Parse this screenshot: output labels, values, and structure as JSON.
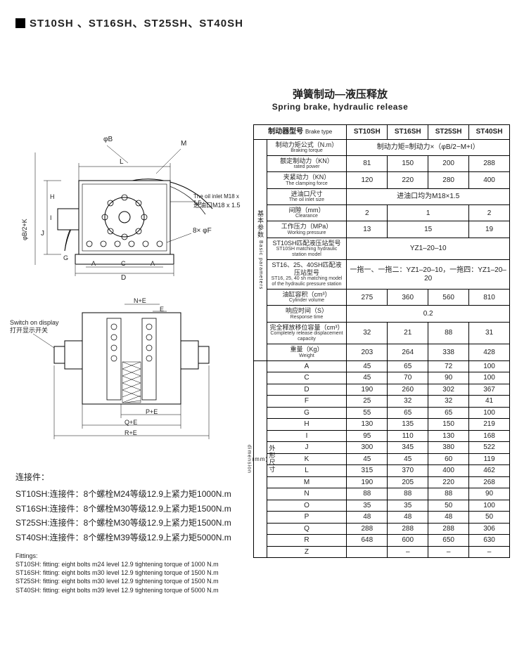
{
  "header": {
    "title": "ST10SH 、ST16SH、ST25SH、ST40SH",
    "subtitle_cn": "弹簧制动—液压释放",
    "subtitle_en": "Spring brake, hydraulic release"
  },
  "table": {
    "corner_cn": "制动器型号",
    "corner_en": "Brake type",
    "columns": [
      "ST10SH",
      "ST16SH",
      "ST25SH",
      "ST40SH"
    ],
    "group1_label_cn": "基本参数",
    "group1_label_en": "Basic parameters",
    "group2_label_cn": "外形尺寸",
    "group2_unit": "(mm)",
    "group2_label_en": "dimension",
    "basic": [
      {
        "cn": "制动力矩公式（N.m）",
        "en": "Braking torque",
        "span": true,
        "spanText": "制动力矩=制动力×（φB/2−M+I）"
      },
      {
        "cn": "额定制动力（KN）",
        "en": "rated power",
        "vals": [
          "81",
          "150",
          "200",
          "288"
        ]
      },
      {
        "cn": "夹紧动力（KN）",
        "en": "The clamping force",
        "vals": [
          "120",
          "220",
          "280",
          "400"
        ]
      },
      {
        "cn": "进油口尺寸",
        "en": "The oil inlet size",
        "span": true,
        "spanText": "进油口均为M18×1.5"
      },
      {
        "cn": "间隙（mm）",
        "en": "Clearance",
        "merged": [
          {
            "text": "2",
            "span": 1
          },
          {
            "text": "1",
            "span": 2
          },
          {
            "text": "2",
            "span": 1
          }
        ]
      },
      {
        "cn": "工作压力（MPa）",
        "en": "Working pressure",
        "merged": [
          {
            "text": "13",
            "span": 1
          },
          {
            "text": "15",
            "span": 2
          },
          {
            "text": "19",
            "span": 1
          }
        ]
      },
      {
        "cn": "ST10SH匹配液压站型号",
        "en": "ST10SH matching hydraulic station model",
        "span": true,
        "spanText": "YZ1–20–10"
      },
      {
        "cn": "ST16、25、40SH匹配液压站型号",
        "en": "ST16, 25, 40 sh matching model of the hydraulic pressure station",
        "span": true,
        "spanText": "一拖一、一拖二：YZ1–20–10，一拖四：YZ1–20–20"
      },
      {
        "cn": "油缸容积（cm³）",
        "en": "Cylinder volume",
        "vals": [
          "275",
          "360",
          "560",
          "810"
        ]
      },
      {
        "cn": "响应时间（S）",
        "en": "Response time",
        "span": true,
        "spanText": "0.2"
      },
      {
        "cn": "完全释放移位容量（cm³）",
        "en": "Completely release displacement capacity",
        "vals": [
          "32",
          "21",
          "88",
          "31"
        ]
      },
      {
        "cn": "重量（Kg）",
        "en": "Weight",
        "vals": [
          "203",
          "264",
          "338",
          "428"
        ]
      }
    ],
    "dims": [
      {
        "k": "A",
        "vals": [
          "45",
          "65",
          "72",
          "100"
        ]
      },
      {
        "k": "C",
        "vals": [
          "45",
          "70",
          "90",
          "100"
        ]
      },
      {
        "k": "D",
        "vals": [
          "190",
          "260",
          "302",
          "367"
        ]
      },
      {
        "k": "F",
        "vals": [
          "25",
          "32",
          "32",
          "41"
        ]
      },
      {
        "k": "G",
        "vals": [
          "55",
          "65",
          "65",
          "100"
        ]
      },
      {
        "k": "H",
        "vals": [
          "130",
          "135",
          "150",
          "219"
        ]
      },
      {
        "k": "I",
        "vals": [
          "95",
          "110",
          "130",
          "168"
        ]
      },
      {
        "k": "J",
        "vals": [
          "300",
          "345",
          "380",
          "522"
        ]
      },
      {
        "k": "K",
        "vals": [
          "45",
          "45",
          "60",
          "119"
        ]
      },
      {
        "k": "L",
        "vals": [
          "315",
          "370",
          "400",
          "462"
        ]
      },
      {
        "k": "M",
        "vals": [
          "190",
          "205",
          "220",
          "268"
        ]
      },
      {
        "k": "N",
        "vals": [
          "88",
          "88",
          "88",
          "90"
        ]
      },
      {
        "k": "O",
        "vals": [
          "35",
          "35",
          "50",
          "100"
        ]
      },
      {
        "k": "P",
        "vals": [
          "48",
          "48",
          "48",
          "50"
        ]
      },
      {
        "k": "Q",
        "vals": [
          "288",
          "288",
          "288",
          "306"
        ]
      },
      {
        "k": "R",
        "vals": [
          "648",
          "600",
          "650",
          "630"
        ]
      },
      {
        "k": "Z",
        "vals": [
          "",
          "–",
          "–",
          "–"
        ]
      }
    ]
  },
  "drawing_labels": {
    "phiB": "φB",
    "M": "M",
    "L": "L",
    "J": "J",
    "I": "I",
    "H": "H",
    "G": "G",
    "phiB2K": "φB/2+K",
    "oil_inlet_en": "The oil inlet M18 x 1.5",
    "oil_inlet_cn": "进油口M18 x 1.5",
    "holes": "8× φF",
    "A": "A",
    "C": "C",
    "D": "D",
    "NE": "N+E",
    "E": "E",
    "switch_en": "Switch on display",
    "switch_cn": "打开显示开关",
    "PE": "P+E",
    "QE": "Q+E",
    "RE": "R+E"
  },
  "fittings": {
    "heading_cn": "连接件：",
    "lines_cn": [
      "ST10SH:连接件：8个螺栓M24等级12.9上紧力矩1000N.m",
      "ST16SH:连接件：8个螺栓M30等级12.9上紧力矩1500N.m",
      "ST25SH:连接件：8个螺栓M30等级12.9上紧力矩1500N.m",
      "ST40SH:连接件：8个螺栓M39等级12.9上紧力矩5000N.m"
    ],
    "heading_en": "Fittings:",
    "lines_en": [
      "ST10SH: fitting: eight bolts m24 level 12.9 tightening torque of 1000 N.m",
      "ST16SH: fitting: eight bolts m30 level 12.9 tightening torque of 1500 N.m",
      "ST25SH: fitting: eight bolts m30 level 12.9 tightening torque of 1500 N.m",
      "ST40SH: fitting: eight bolts m39 level 12.9 tightening torque of 5000 N.m"
    ]
  }
}
